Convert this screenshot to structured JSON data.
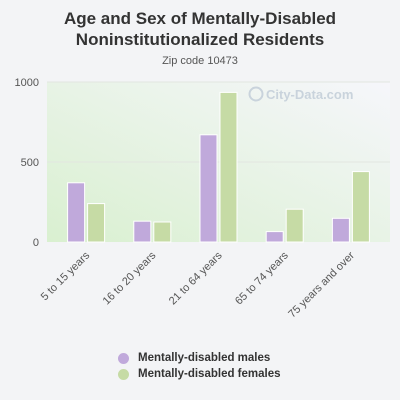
{
  "chart_data": {
    "type": "bar",
    "title_line1": "Age and Sex of Mentally-Disabled",
    "title_line2": "Noninstitutionalized Residents",
    "subtitle": "Zip code 10473",
    "categories": [
      "5 to 15 years",
      "16 to 20 years",
      "21 to 64 years",
      "65 to 74 years",
      "75 years and over"
    ],
    "series": [
      {
        "name": "Mentally-disabled males",
        "color": "#c0a9db",
        "values": [
          370,
          130,
          670,
          65,
          148
        ]
      },
      {
        "name": "Mentally-disabled females",
        "color": "#c6dba5",
        "values": [
          240,
          125,
          935,
          205,
          440
        ]
      }
    ],
    "ylim": [
      0,
      1000
    ],
    "yticks": [
      0,
      500,
      1000
    ],
    "grid": true,
    "legend": "bottom",
    "watermark": "City-Data.com"
  }
}
